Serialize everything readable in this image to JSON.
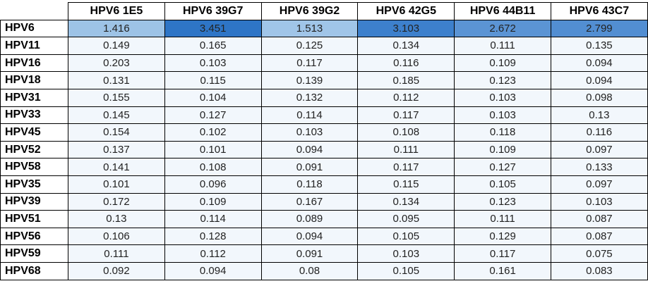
{
  "columns": [
    "HPV6 1E5",
    "HPV6 39G7",
    "HPV6 39G2",
    "HPV6 42G5",
    "HPV6 44B11",
    "HPV6 43C7"
  ],
  "rows": [
    {
      "label": "HPV6",
      "values": [
        "1.416",
        "3.451",
        "1.513",
        "3.103",
        "2.672",
        "2.799"
      ],
      "colors": [
        "#9DC3E6",
        "#2E75C6",
        "#A0C5E8",
        "#3D80CC",
        "#5B94D4",
        "#528ED2"
      ]
    },
    {
      "label": "HPV11",
      "values": [
        "0.149",
        "0.165",
        "0.125",
        "0.134",
        "0.111",
        "0.135"
      ]
    },
    {
      "label": "HPV16",
      "values": [
        "0.203",
        "0.103",
        "0.117",
        "0.116",
        "0.109",
        "0.094"
      ]
    },
    {
      "label": "HPV18",
      "values": [
        "0.131",
        "0.115",
        "0.139",
        "0.185",
        "0.123",
        "0.094"
      ]
    },
    {
      "label": "HPV31",
      "values": [
        "0.155",
        "0.104",
        "0.132",
        "0.112",
        "0.103",
        "0.098"
      ]
    },
    {
      "label": "HPV33",
      "values": [
        "0.145",
        "0.127",
        "0.114",
        "0.117",
        "0.103",
        "0.13"
      ]
    },
    {
      "label": "HPV45",
      "values": [
        "0.154",
        "0.102",
        "0.103",
        "0.108",
        "0.118",
        "0.116"
      ]
    },
    {
      "label": "HPV52",
      "values": [
        "0.137",
        "0.101",
        "0.094",
        "0.111",
        "0.109",
        "0.097"
      ]
    },
    {
      "label": "HPV58",
      "values": [
        "0.141",
        "0.108",
        "0.091",
        "0.117",
        "0.127",
        "0.133"
      ]
    },
    {
      "label": "HPV35",
      "values": [
        "0.101",
        "0.096",
        "0.118",
        "0.115",
        "0.105",
        "0.097"
      ]
    },
    {
      "label": "HPV39",
      "values": [
        "0.172",
        "0.109",
        "0.167",
        "0.134",
        "0.123",
        "0.103"
      ]
    },
    {
      "label": "HPV51",
      "values": [
        "0.13",
        "0.114",
        "0.089",
        "0.095",
        "0.111",
        "0.087"
      ]
    },
    {
      "label": "HPV56",
      "values": [
        "0.106",
        "0.128",
        "0.094",
        "0.105",
        "0.129",
        "0.087"
      ]
    },
    {
      "label": "HPV59",
      "values": [
        "0.111",
        "0.112",
        "0.091",
        "0.103",
        "0.117",
        "0.075"
      ]
    },
    {
      "label": "HPV68",
      "values": [
        "0.092",
        "0.094",
        "0.08",
        "0.105",
        "0.161",
        "0.083"
      ]
    }
  ],
  "colors": {
    "low_cell": "#F2F7FC",
    "border": "#000000"
  }
}
